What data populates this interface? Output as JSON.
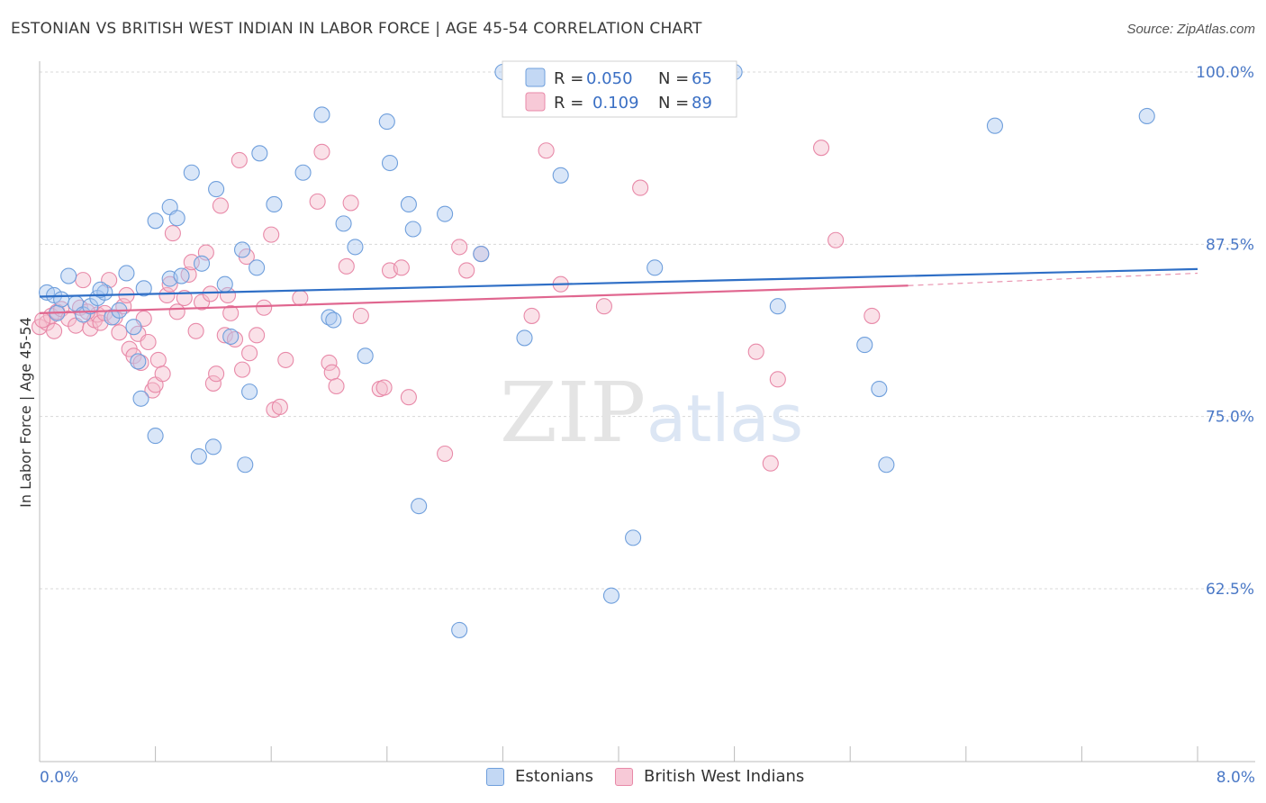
{
  "title": "ESTONIAN VS BRITISH WEST INDIAN IN LABOR FORCE | AGE 45-54 CORRELATION CHART",
  "source": "Source: ZipAtlas.com",
  "watermark": {
    "zip": "ZIP",
    "atlas": "atlas"
  },
  "colors": {
    "blue": "#6f9fdc",
    "blue_fill": "#aac8ef",
    "blue_line": "#2f6fc6",
    "pink": "#e889a8",
    "pink_fill": "#f5bccd",
    "pink_line": "#e0668f",
    "tick_text": "#4a78c6",
    "grid": "#d8d8d8"
  },
  "legend": {
    "rows": [
      {
        "r_label": "R =",
        "r_value": "0.050",
        "n_label": "N =",
        "n_value": "65",
        "series": "blue"
      },
      {
        "r_label": "R =",
        "r_value": "0.109",
        "n_label": "N =",
        "n_value": "89",
        "series": "pink"
      }
    ]
  },
  "bottom_legend": [
    {
      "label": "Estonians",
      "series": "blue"
    },
    {
      "label": "British West Indians",
      "series": "pink"
    }
  ],
  "chart_data": {
    "type": "scatter",
    "title": "ESTONIAN VS BRITISH WEST INDIAN IN LABOR FORCE | AGE 45-54 CORRELATION CHART",
    "xlabel": "",
    "ylabel": "In Labor Force | Age 45-54",
    "xlim": [
      0,
      8.4
    ],
    "ylim": [
      50.5,
      101.5
    ],
    "x_tick_labels": [
      {
        "value": 0,
        "label": "0.0%"
      },
      {
        "value": 8,
        "label": "8.0%"
      }
    ],
    "y_tick_labels": [
      {
        "value": 100,
        "label": "100.0%"
      },
      {
        "value": 87.5,
        "label": "87.5%"
      },
      {
        "value": 75,
        "label": "75.0%"
      },
      {
        "value": 62.5,
        "label": "62.5%"
      }
    ],
    "x_minor_ticks": [
      0.8,
      1.6,
      2.4,
      3.2,
      4.0,
      4.8,
      5.6,
      6.4,
      7.2,
      8.0
    ],
    "series": [
      {
        "name": "Estonians",
        "color": "blue",
        "r": 0.05,
        "n": 65,
        "trend": {
          "x": [
            0,
            8.0
          ],
          "y": [
            83.7,
            85.7
          ]
        },
        "points": [
          [
            0.05,
            84.0
          ],
          [
            0.1,
            83.8
          ],
          [
            0.15,
            83.5
          ],
          [
            0.2,
            85.2
          ],
          [
            0.25,
            83.2
          ],
          [
            0.3,
            82.4
          ],
          [
            0.35,
            83.0
          ],
          [
            0.4,
            83.6
          ],
          [
            0.45,
            84.0
          ],
          [
            0.5,
            82.2
          ],
          [
            0.55,
            82.7
          ],
          [
            0.6,
            85.4
          ],
          [
            0.65,
            81.5
          ],
          [
            0.68,
            79.0
          ],
          [
            0.7,
            76.3
          ],
          [
            0.72,
            84.3
          ],
          [
            0.8,
            73.6
          ],
          [
            0.8,
            89.2
          ],
          [
            0.9,
            90.2
          ],
          [
            0.95,
            89.4
          ],
          [
            0.9,
            85.0
          ],
          [
            0.98,
            85.2
          ],
          [
            1.05,
            92.7
          ],
          [
            1.1,
            72.1
          ],
          [
            1.12,
            86.1
          ],
          [
            1.2,
            72.8
          ],
          [
            1.22,
            91.5
          ],
          [
            1.32,
            80.8
          ],
          [
            1.4,
            87.1
          ],
          [
            1.42,
            71.5
          ],
          [
            1.45,
            76.8
          ],
          [
            1.5,
            85.8
          ],
          [
            1.52,
            94.1
          ],
          [
            1.62,
            90.4
          ],
          [
            1.82,
            92.7
          ],
          [
            1.95,
            96.9
          ],
          [
            2.0,
            82.2
          ],
          [
            2.03,
            82.0
          ],
          [
            2.1,
            89.0
          ],
          [
            2.18,
            87.3
          ],
          [
            2.25,
            79.4
          ],
          [
            2.4,
            96.4
          ],
          [
            2.42,
            93.4
          ],
          [
            2.55,
            90.4
          ],
          [
            2.58,
            88.6
          ],
          [
            2.62,
            68.5
          ],
          [
            2.8,
            89.7
          ],
          [
            2.9,
            59.5
          ],
          [
            3.05,
            86.8
          ],
          [
            3.2,
            100.0
          ],
          [
            3.35,
            80.7
          ],
          [
            3.6,
            92.5
          ],
          [
            3.95,
            62.0
          ],
          [
            4.1,
            66.2
          ],
          [
            4.25,
            85.8
          ],
          [
            4.8,
            100.0
          ],
          [
            5.1,
            83.0
          ],
          [
            5.7,
            80.2
          ],
          [
            5.8,
            77.0
          ],
          [
            5.85,
            71.5
          ],
          [
            6.6,
            96.1
          ],
          [
            7.65,
            96.8
          ],
          [
            0.12,
            82.5
          ],
          [
            0.42,
            84.2
          ],
          [
            1.28,
            84.6
          ]
        ]
      },
      {
        "name": "British West Indians",
        "color": "pink",
        "r": 0.109,
        "n": 89,
        "trend": {
          "x": [
            0,
            6.0
          ],
          "y": [
            82.5,
            84.5
          ]
        },
        "trend_dashed": {
          "x": [
            6.0,
            8.0
          ],
          "y": [
            84.5,
            85.4
          ]
        },
        "points": [
          [
            0.0,
            81.5
          ],
          [
            0.05,
            81.8
          ],
          [
            0.08,
            82.3
          ],
          [
            0.12,
            82.6
          ],
          [
            0.15,
            82.8
          ],
          [
            0.2,
            82.1
          ],
          [
            0.25,
            81.6
          ],
          [
            0.28,
            82.9
          ],
          [
            0.3,
            84.9
          ],
          [
            0.35,
            81.4
          ],
          [
            0.38,
            82.0
          ],
          [
            0.4,
            82.4
          ],
          [
            0.42,
            81.8
          ],
          [
            0.45,
            82.5
          ],
          [
            0.48,
            84.9
          ],
          [
            0.52,
            82.2
          ],
          [
            0.55,
            81.1
          ],
          [
            0.58,
            83.0
          ],
          [
            0.6,
            83.8
          ],
          [
            0.62,
            79.9
          ],
          [
            0.65,
            79.4
          ],
          [
            0.68,
            81.0
          ],
          [
            0.7,
            78.9
          ],
          [
            0.72,
            82.1
          ],
          [
            0.75,
            80.4
          ],
          [
            0.78,
            76.9
          ],
          [
            0.8,
            77.3
          ],
          [
            0.82,
            79.1
          ],
          [
            0.85,
            78.1
          ],
          [
            0.88,
            83.8
          ],
          [
            0.9,
            84.6
          ],
          [
            0.92,
            88.3
          ],
          [
            0.95,
            82.6
          ],
          [
            1.0,
            83.6
          ],
          [
            1.03,
            85.3
          ],
          [
            1.05,
            86.2
          ],
          [
            1.08,
            81.2
          ],
          [
            1.12,
            83.3
          ],
          [
            1.15,
            86.9
          ],
          [
            1.18,
            83.9
          ],
          [
            1.2,
            77.4
          ],
          [
            1.22,
            78.1
          ],
          [
            1.25,
            90.3
          ],
          [
            1.28,
            80.9
          ],
          [
            1.3,
            83.8
          ],
          [
            1.32,
            82.5
          ],
          [
            1.35,
            80.6
          ],
          [
            1.38,
            93.6
          ],
          [
            1.4,
            78.4
          ],
          [
            1.43,
            86.6
          ],
          [
            1.45,
            79.6
          ],
          [
            1.5,
            80.9
          ],
          [
            1.55,
            82.9
          ],
          [
            1.6,
            88.2
          ],
          [
            1.62,
            75.5
          ],
          [
            1.66,
            75.7
          ],
          [
            1.7,
            79.1
          ],
          [
            1.8,
            83.6
          ],
          [
            1.92,
            90.6
          ],
          [
            1.95,
            94.2
          ],
          [
            2.0,
            78.9
          ],
          [
            2.02,
            78.2
          ],
          [
            2.05,
            77.2
          ],
          [
            2.12,
            85.9
          ],
          [
            2.15,
            90.5
          ],
          [
            2.22,
            82.3
          ],
          [
            2.35,
            77.0
          ],
          [
            2.38,
            77.1
          ],
          [
            2.42,
            85.6
          ],
          [
            2.5,
            85.8
          ],
          [
            2.55,
            76.4
          ],
          [
            2.8,
            72.3
          ],
          [
            2.9,
            87.3
          ],
          [
            2.95,
            85.6
          ],
          [
            3.05,
            86.8
          ],
          [
            3.4,
            82.3
          ],
          [
            3.5,
            94.3
          ],
          [
            3.6,
            84.6
          ],
          [
            3.9,
            83.0
          ],
          [
            4.15,
            91.6
          ],
          [
            4.95,
            79.7
          ],
          [
            5.05,
            71.6
          ],
          [
            5.1,
            77.7
          ],
          [
            5.4,
            94.5
          ],
          [
            5.5,
            87.8
          ],
          [
            5.75,
            82.3
          ],
          [
            0.02,
            82.0
          ],
          [
            0.1,
            81.2
          ],
          [
            0.33,
            82.6
          ]
        ]
      }
    ]
  }
}
